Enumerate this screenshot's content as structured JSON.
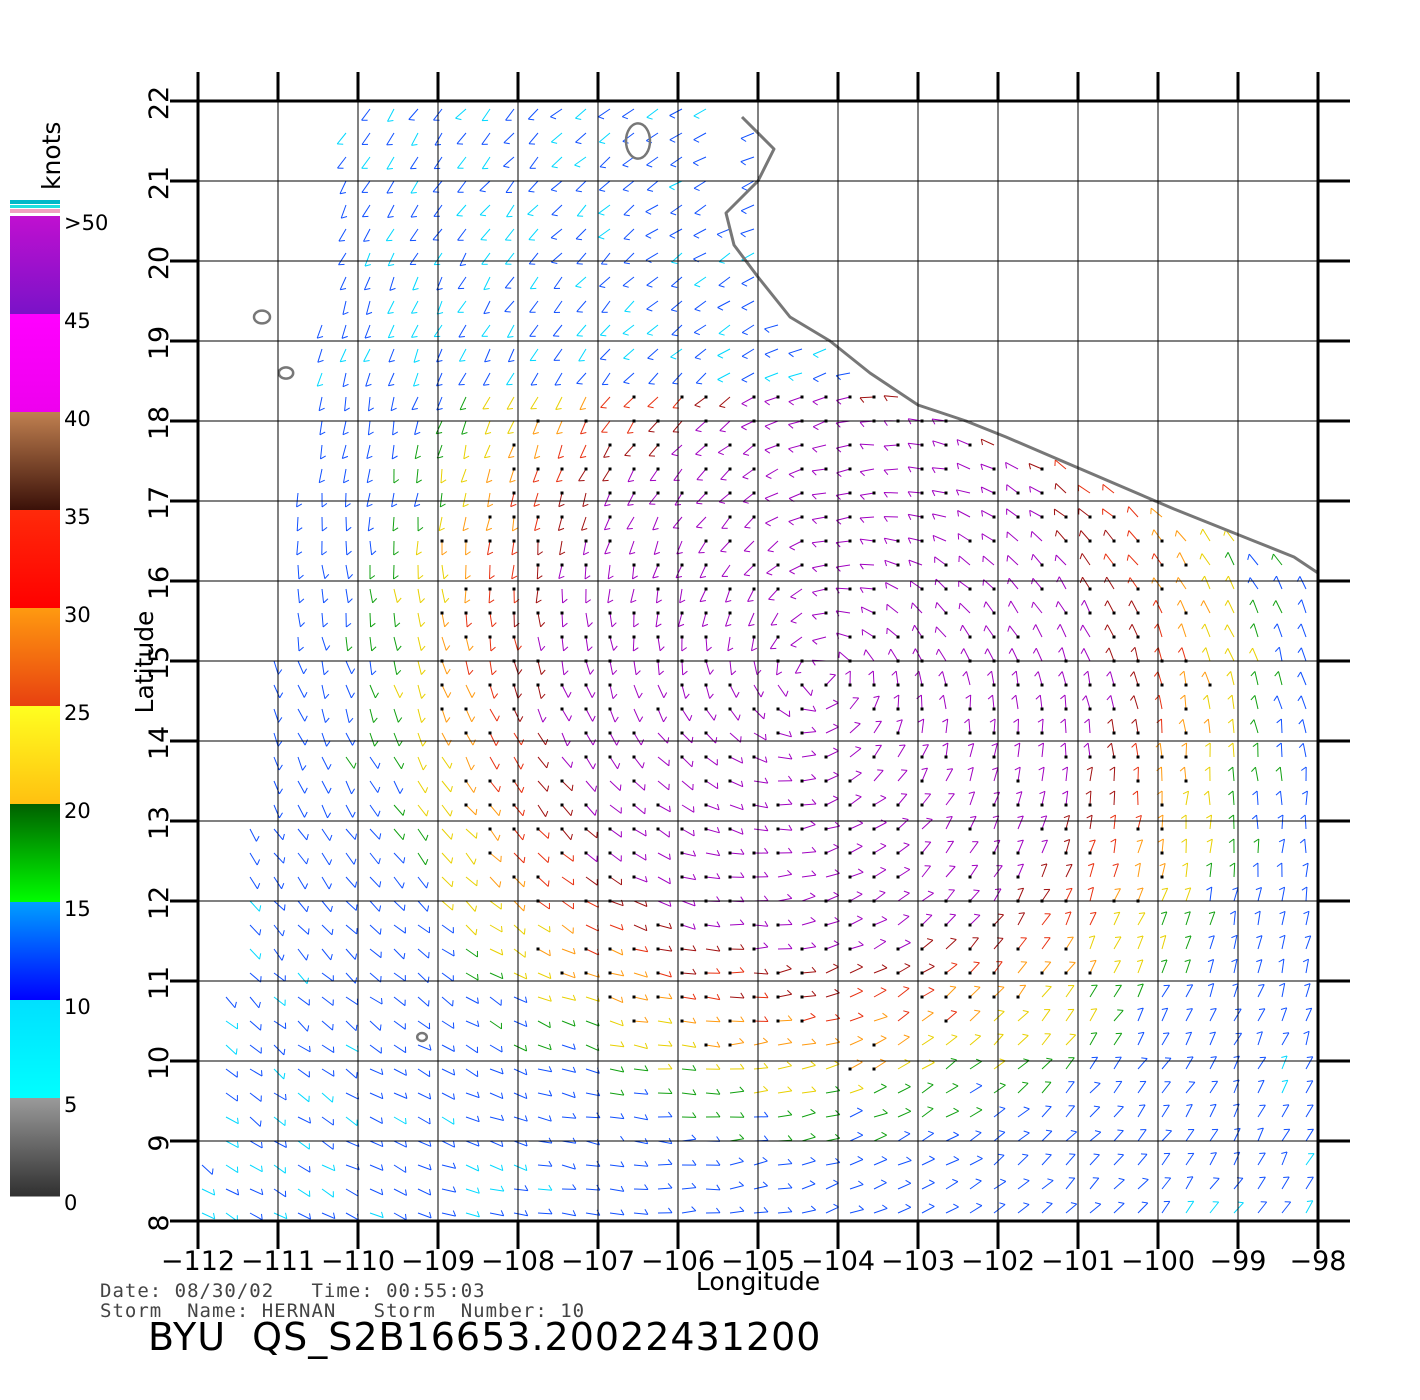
{
  "map": {
    "lon_range": [
      -112,
      -98
    ],
    "lat_range": [
      8,
      22
    ],
    "lon_ticks": [
      -112,
      -111,
      -110,
      -109,
      -108,
      -107,
      -106,
      -105,
      -104,
      -103,
      -102,
      -101,
      -100,
      -99,
      -98
    ],
    "lat_ticks": [
      8,
      9,
      10,
      11,
      12,
      13,
      14,
      15,
      16,
      17,
      18,
      19,
      20,
      21,
      22
    ],
    "xlabel": "Longitude",
    "ylabel": "Latitude",
    "grid": true,
    "background": "#ffffff",
    "coastline_color": "#777777",
    "coastline": [
      [
        -105.2,
        21.8
      ],
      [
        -104.8,
        21.4
      ],
      [
        -105.0,
        21.0
      ],
      [
        -105.4,
        20.6
      ],
      [
        -105.3,
        20.2
      ],
      [
        -105.0,
        19.8
      ],
      [
        -104.6,
        19.3
      ],
      [
        -104.1,
        19.0
      ],
      [
        -103.6,
        18.6
      ],
      [
        -103.0,
        18.2
      ],
      [
        -102.4,
        18.0
      ],
      [
        -101.9,
        17.8
      ],
      [
        -101.2,
        17.5
      ],
      [
        -100.5,
        17.2
      ],
      [
        -99.8,
        16.9
      ],
      [
        -99.3,
        16.7
      ],
      [
        -98.8,
        16.5
      ],
      [
        -98.3,
        16.3
      ],
      [
        -98.0,
        16.1
      ]
    ],
    "islands": [
      [
        -106.5,
        21.5,
        0.15,
        0.22
      ],
      [
        -111.2,
        19.3,
        0.1,
        0.08
      ],
      [
        -110.9,
        18.6,
        0.09,
        0.07
      ],
      [
        -109.2,
        10.3,
        0.06,
        0.05
      ]
    ],
    "wind_fields": {
      "storm_center": [
        -104.2,
        14.8
      ],
      "barb_density_deg": 0.3
    }
  },
  "legend": {
    "title": "knots",
    "stops": [
      {
        "label": ">50",
        "from": "#5a16c8",
        "to": "#5a16c8"
      },
      {
        "label": "45",
        "from": "#7a12c8",
        "to": "#c010d0"
      },
      {
        "label": "40",
        "from": "#ee00ee",
        "to": "#ff00ff"
      },
      {
        "label": "35",
        "from": "#3a1008",
        "to": "#c08050"
      },
      {
        "label": "30",
        "from": "#ff0000",
        "to": "#ff2a0a"
      },
      {
        "label": "25",
        "from": "#e84010",
        "to": "#ff9a10"
      },
      {
        "label": "20",
        "from": "#ffc010",
        "to": "#ffff20"
      },
      {
        "label": "15",
        "from": "#00ff00",
        "to": "#006000"
      },
      {
        "label": "10",
        "from": "#0000ff",
        "to": "#00a0ff"
      },
      {
        "label": "5",
        "from": "#00ffff",
        "to": "#00e0ff"
      },
      {
        "label": "0",
        "from": "#303030",
        "to": "#9a9a9a"
      }
    ]
  },
  "footer": {
    "line1": "Date: 08/30/02   Time: 00:55:03",
    "line2": "Storm  Name: HERNAN   Storm  Number: 10",
    "title": "BYU  QS_S2B16653.20022431200"
  }
}
